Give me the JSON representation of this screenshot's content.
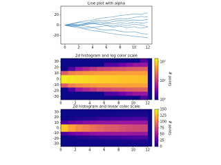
{
  "chart_data": [
    {
      "type": "line",
      "title": "Line plot with alpha",
      "color": "#1f77b4",
      "x": [
        0,
        1,
        2,
        3,
        4,
        5,
        6,
        7,
        8,
        9,
        10,
        11,
        12
      ],
      "series": [
        {
          "values": [
            0,
            2,
            5,
            4,
            7,
            9,
            8,
            11,
            13,
            12,
            15,
            17,
            16
          ]
        },
        {
          "values": [
            0,
            -2,
            -3,
            -6,
            -5,
            -8,
            -10,
            -9,
            -12,
            -14,
            -13,
            -16,
            -18
          ]
        },
        {
          "values": [
            0,
            1,
            -1,
            2,
            3,
            1,
            4,
            2,
            5,
            3,
            6,
            4,
            5
          ]
        },
        {
          "values": [
            0,
            -1,
            1,
            -2,
            -4,
            -3,
            -1,
            -4,
            -2,
            -5,
            -3,
            -6,
            -4
          ]
        },
        {
          "values": [
            0,
            3,
            6,
            8,
            10,
            13,
            15,
            16,
            19,
            20,
            22,
            21,
            24
          ]
        },
        {
          "values": [
            0,
            -3,
            -5,
            -8,
            -11,
            -12,
            -15,
            -17,
            -19,
            -20,
            -22,
            -23,
            -25
          ]
        },
        {
          "values": [
            0,
            2,
            0,
            3,
            5,
            2,
            0,
            -2,
            1,
            -1,
            2,
            0,
            -3
          ]
        },
        {
          "values": [
            0,
            -2,
            -1,
            1,
            3,
            6,
            4,
            7,
            9,
            8,
            10,
            9,
            11
          ]
        }
      ],
      "xlim": [
        -0.6,
        12.6
      ],
      "xticks": [
        0,
        2,
        4,
        6,
        8,
        10,
        12
      ],
      "ylim": [
        -37,
        37
      ],
      "yticks": [
        -20,
        0,
        20
      ]
    },
    {
      "type": "hist2d",
      "title": "2d histogram and log color scale",
      "colormap": "plasma",
      "log_scale": true,
      "colorbar_label": "# points",
      "xbins": [
        0,
        1,
        2,
        3,
        4,
        5,
        6,
        7,
        8,
        9,
        10,
        11,
        12
      ],
      "ybins": [
        -35,
        -28,
        -21,
        -14,
        -7,
        0,
        7,
        14,
        21,
        28,
        35
      ],
      "counts": [
        [
          0,
          0,
          0,
          0,
          0,
          0,
          0,
          0,
          1,
          1,
          1,
          2
        ],
        [
          0,
          0,
          0,
          0,
          1,
          1,
          2,
          2,
          3,
          4,
          5,
          5
        ],
        [
          0,
          2,
          5,
          7,
          9,
          12,
          13,
          15,
          16,
          18,
          19,
          20
        ],
        [
          18,
          31,
          37,
          41,
          44,
          46,
          47,
          48,
          49,
          49,
          49,
          49
        ],
        [
          132,
          117,
          108,
          102,
          96,
          91,
          87,
          85,
          81,
          78,
          76,
          74
        ],
        [
          132,
          117,
          108,
          102,
          96,
          91,
          87,
          85,
          81,
          78,
          76,
          74
        ],
        [
          18,
          31,
          37,
          41,
          44,
          46,
          47,
          48,
          49,
          49,
          49,
          49
        ],
        [
          0,
          2,
          5,
          7,
          9,
          12,
          13,
          15,
          16,
          18,
          19,
          20
        ],
        [
          0,
          0,
          0,
          0,
          1,
          1,
          2,
          2,
          3,
          4,
          5,
          5
        ],
        [
          0,
          0,
          0,
          0,
          0,
          0,
          0,
          0,
          1,
          1,
          1,
          2
        ]
      ],
      "xlim": [
        0,
        12.6
      ],
      "xticks": [
        0,
        2,
        4,
        6,
        8,
        10,
        12
      ],
      "ylim": [
        -35,
        35
      ],
      "yticks": [
        -30,
        -20,
        -10,
        0,
        10,
        20,
        30
      ],
      "clim": [
        1,
        150
      ],
      "cticks": [
        {
          "value": 1,
          "label": "10⁰"
        },
        {
          "value": 10,
          "label": "10¹"
        },
        {
          "value": 100,
          "label": "10²"
        }
      ]
    },
    {
      "type": "hist2d",
      "title": "2d histogram and linear color scale",
      "colormap": "plasma",
      "log_scale": false,
      "colorbar_label": "# points",
      "xbins": [
        0,
        1,
        2,
        3,
        4,
        5,
        6,
        7,
        8,
        9,
        10,
        11,
        12
      ],
      "ybins": [
        -35,
        -28,
        -21,
        -14,
        -7,
        0,
        7,
        14,
        21,
        28,
        35
      ],
      "counts": [
        [
          0,
          0,
          0,
          0,
          0,
          0,
          0,
          0,
          1,
          1,
          1,
          2
        ],
        [
          0,
          0,
          0,
          0,
          1,
          1,
          2,
          2,
          3,
          4,
          5,
          5
        ],
        [
          0,
          2,
          5,
          7,
          9,
          12,
          13,
          15,
          16,
          18,
          19,
          20
        ],
        [
          18,
          31,
          37,
          41,
          44,
          46,
          47,
          48,
          49,
          49,
          49,
          49
        ],
        [
          132,
          117,
          108,
          102,
          96,
          91,
          87,
          85,
          81,
          78,
          76,
          74
        ],
        [
          132,
          117,
          108,
          102,
          96,
          91,
          87,
          85,
          81,
          78,
          76,
          74
        ],
        [
          18,
          31,
          37,
          41,
          44,
          46,
          47,
          48,
          49,
          49,
          49,
          49
        ],
        [
          0,
          2,
          5,
          7,
          9,
          12,
          13,
          15,
          16,
          18,
          19,
          20
        ],
        [
          0,
          0,
          0,
          0,
          1,
          1,
          2,
          2,
          3,
          4,
          5,
          5
        ],
        [
          0,
          0,
          0,
          0,
          0,
          0,
          0,
          0,
          1,
          1,
          1,
          2
        ]
      ],
      "xlim": [
        0,
        12.6
      ],
      "xticks": [
        0,
        2,
        4,
        6,
        8,
        10,
        12
      ],
      "ylim": [
        -35,
        35
      ],
      "yticks": [
        -30,
        -20,
        -10,
        0,
        10,
        20,
        30
      ],
      "clim": [
        0,
        150
      ],
      "cticks": [
        0,
        25,
        50,
        75,
        100,
        125,
        150
      ]
    }
  ]
}
